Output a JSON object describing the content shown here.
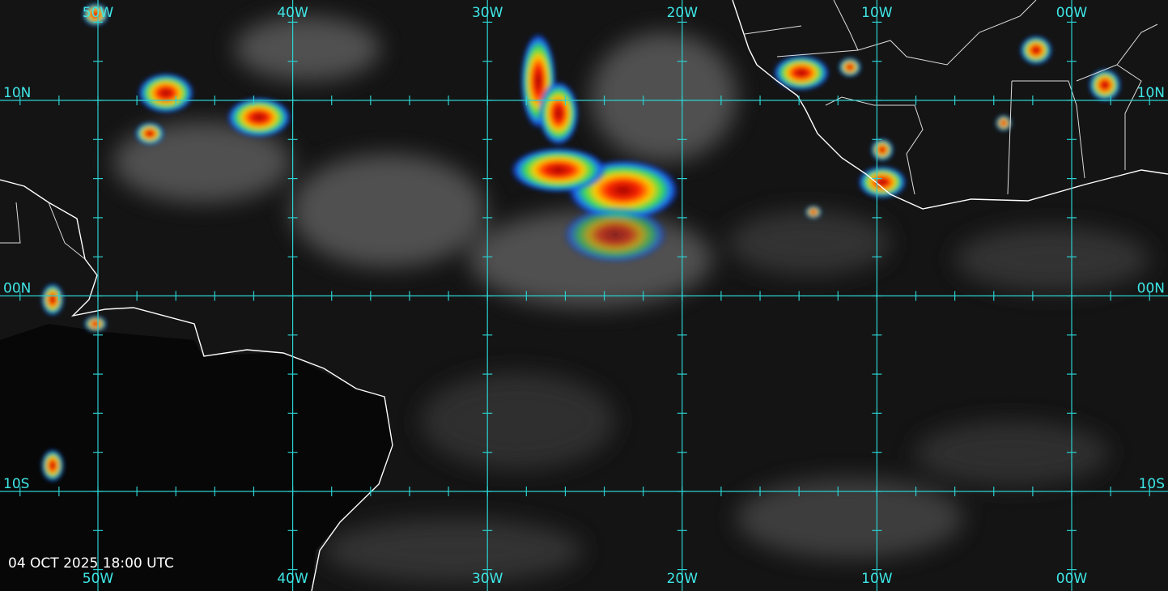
{
  "map": {
    "longitude_labels": [
      "50W",
      "40W",
      "30W",
      "20W",
      "10W",
      "00W"
    ],
    "latitude_labels": [
      "10N",
      "00N",
      "10S"
    ],
    "timestamp": "04 OCT 2025 18:00 UTC"
  }
}
